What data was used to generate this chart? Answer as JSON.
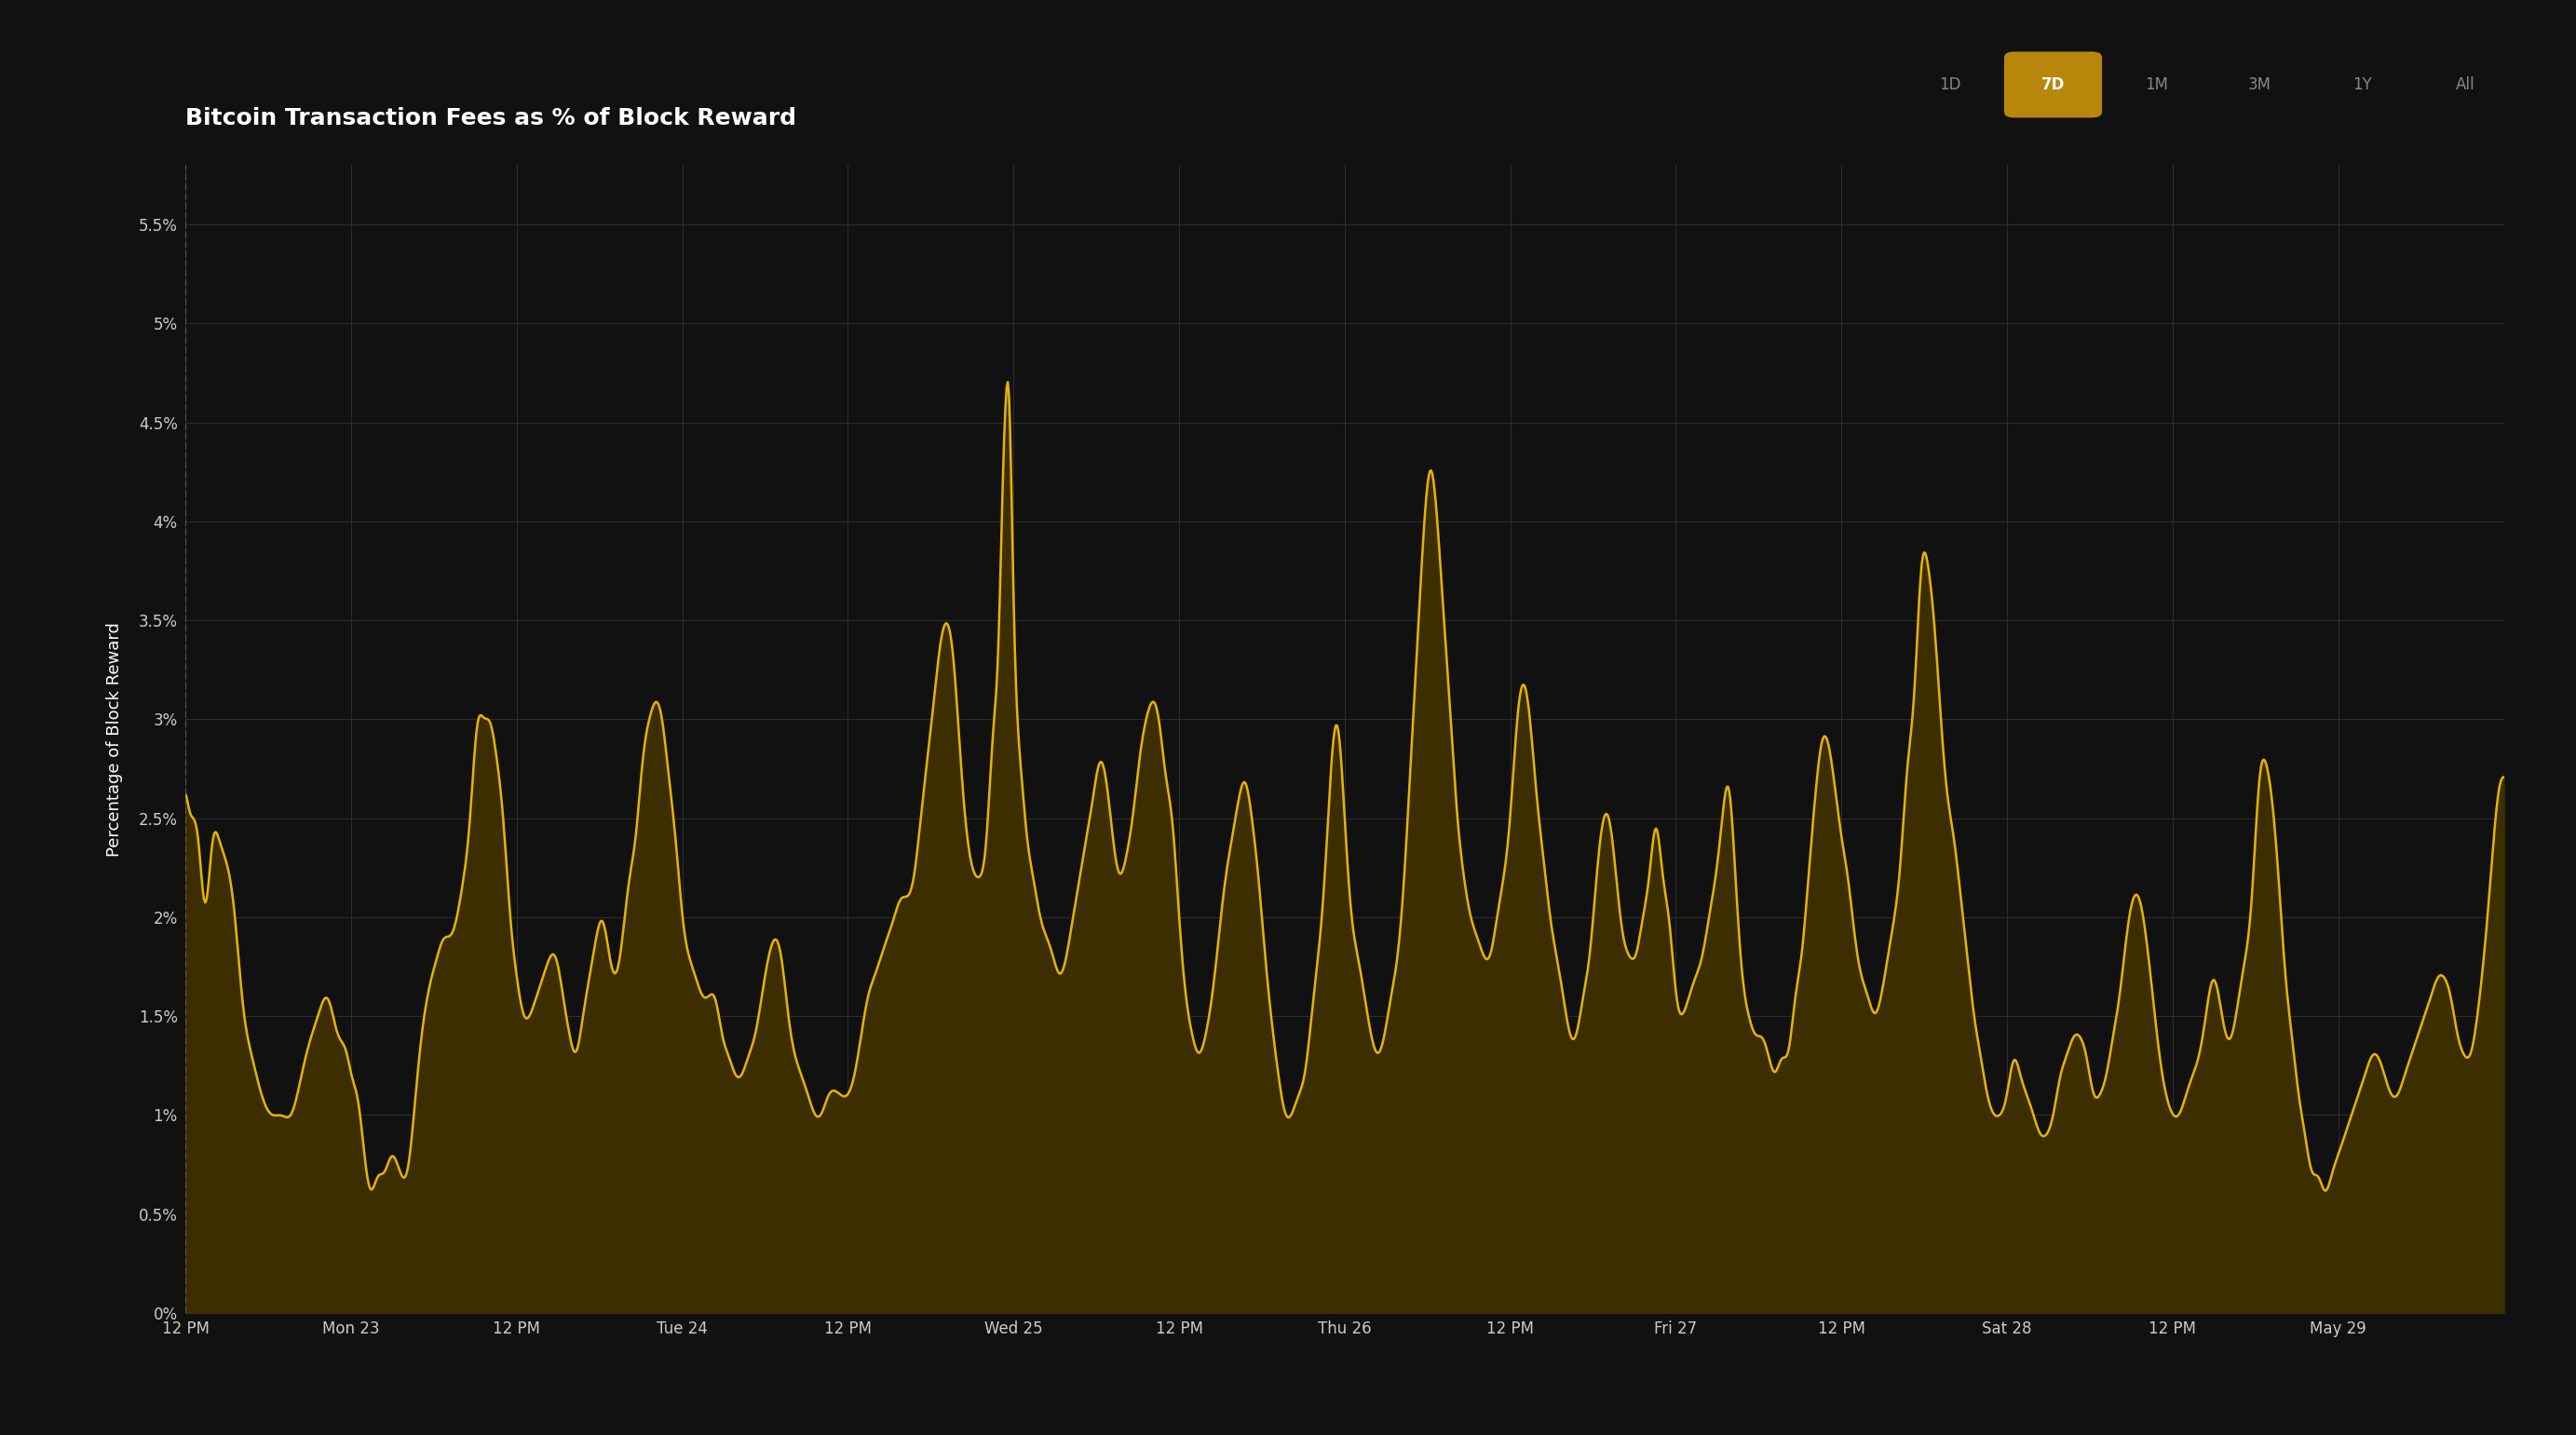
{
  "title": "Bitcoin Transaction Fees as % of Block Reward",
  "ylabel": "Percentage of Block Reward",
  "background_color": "#111111",
  "plot_bg_color": "#111111",
  "line_color": "#e6b400",
  "fill_color": "#3d2e00",
  "grid_color": "#333333",
  "text_color": "#ffffff",
  "axis_text_color": "#cccccc",
  "ylim": [
    0,
    0.058
  ],
  "yticks": [
    0,
    0.005,
    0.01,
    0.015,
    0.02,
    0.025,
    0.03,
    0.035,
    0.04,
    0.045,
    0.05,
    0.055
  ],
  "ytick_labels": [
    "0%",
    "0.5%",
    "1%",
    "1.5%",
    "2%",
    "2.5%",
    "3%",
    "3.5%",
    "4%",
    "4.5%",
    "5%",
    "5.5%"
  ],
  "xtick_labels": [
    "12 PM",
    "Mon 23",
    "12 PM",
    "Tue 24",
    "12 PM",
    "Wed 25",
    "12 PM",
    "Thu 26",
    "12 PM",
    "Fri 27",
    "12 PM",
    "Sat 28",
    "12 PM",
    "May 29"
  ],
  "time_buttons": [
    "1D",
    "7D",
    "1M",
    "3M",
    "1Y",
    "All"
  ],
  "active_button": "7D",
  "title_fontsize": 18,
  "axis_fontsize": 13,
  "tick_fontsize": 12,
  "button_fontsize": 12
}
